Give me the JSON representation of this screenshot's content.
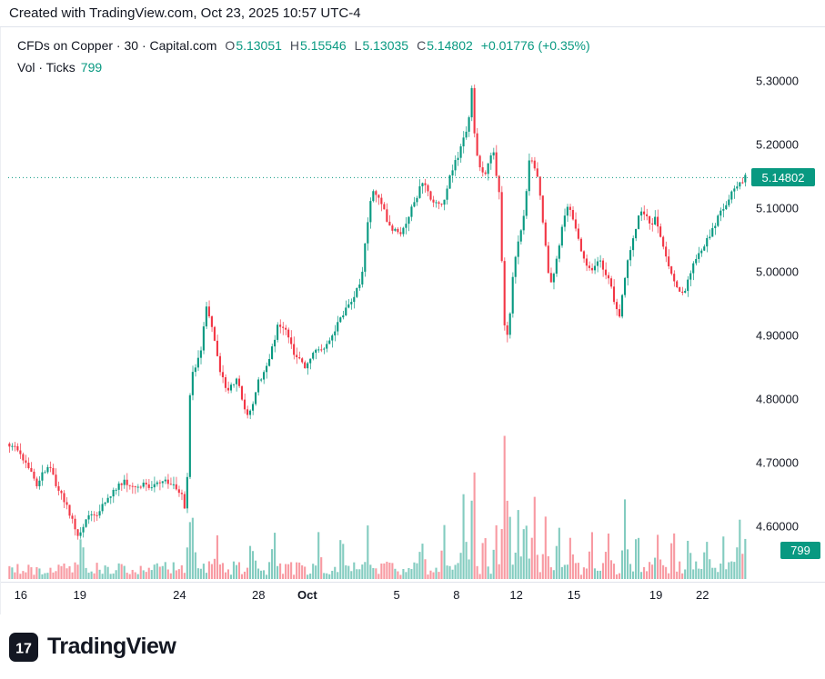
{
  "topbar": {
    "text": "Created with TradingView.com, Oct 23, 2025 10:57 UTC-4"
  },
  "legend": {
    "title": "CFDs on Copper · 30 · Capital.com",
    "ohlc": [
      {
        "label": "O",
        "value": "5.13051"
      },
      {
        "label": "H",
        "value": "5.15546"
      },
      {
        "label": "L",
        "value": "5.13035"
      },
      {
        "label": "C",
        "value": "5.14802"
      }
    ],
    "change": "+0.01776 (+0.35%)",
    "volume_title": "Vol · Ticks",
    "volume_value": "799"
  },
  "price_axis": {
    "current_price_label": "5.14802",
    "volume_label": "799"
  },
  "footer": {
    "brand": "TradingView"
  },
  "colors": {
    "up": "#089981",
    "down": "#F23645",
    "text": "#131722",
    "axis_line": "#e0e3eb",
    "volume_opacity": 0.5
  },
  "chart_data": {
    "type": "candlestick",
    "title": "CFDs on Copper, 30, Capital.com",
    "interval_minutes": 30,
    "current": {
      "open": 5.13051,
      "high": 5.15546,
      "low": 5.13035,
      "close": 5.14802,
      "change": 0.01776,
      "change_pct": 0.35,
      "volume_ticks": 799
    },
    "grid": false,
    "y_axis": {
      "ticks": [
        {
          "value": 5.3,
          "label": "5.30000"
        },
        {
          "value": 5.2,
          "label": "5.20000"
        },
        {
          "value": 5.1,
          "label": "5.10000"
        },
        {
          "value": 5.0,
          "label": "5.00000"
        },
        {
          "value": 4.9,
          "label": "4.90000"
        },
        {
          "value": 4.8,
          "label": "4.80000"
        },
        {
          "value": 4.7,
          "label": "4.70000"
        },
        {
          "value": 4.6,
          "label": "4.60000"
        }
      ],
      "range": [
        4.55,
        5.33
      ]
    },
    "x_axis": {
      "labels": [
        {
          "text": "16",
          "pos": 0.017
        },
        {
          "text": "19",
          "pos": 0.097
        },
        {
          "text": "24",
          "pos": 0.232
        },
        {
          "text": "28",
          "pos": 0.339
        },
        {
          "text": "Oct",
          "pos": 0.405,
          "bold": true
        },
        {
          "text": "5",
          "pos": 0.526
        },
        {
          "text": "8",
          "pos": 0.607
        },
        {
          "text": "12",
          "pos": 0.688
        },
        {
          "text": "15",
          "pos": 0.766
        },
        {
          "text": "19",
          "pos": 0.877
        },
        {
          "text": "22",
          "pos": 0.94
        }
      ]
    },
    "price_path": [
      [
        0.0,
        4.73
      ],
      [
        0.012,
        4.725
      ],
      [
        0.02,
        4.71
      ],
      [
        0.033,
        4.69
      ],
      [
        0.04,
        4.665
      ],
      [
        0.05,
        4.685
      ],
      [
        0.058,
        4.7
      ],
      [
        0.068,
        4.66
      ],
      [
        0.076,
        4.645
      ],
      [
        0.088,
        4.61
      ],
      [
        0.098,
        4.585
      ],
      [
        0.11,
        4.615
      ],
      [
        0.123,
        4.62
      ],
      [
        0.135,
        4.64
      ],
      [
        0.148,
        4.66
      ],
      [
        0.16,
        4.672
      ],
      [
        0.172,
        4.66
      ],
      [
        0.183,
        4.665
      ],
      [
        0.195,
        4.66
      ],
      [
        0.207,
        4.668
      ],
      [
        0.218,
        4.67
      ],
      [
        0.228,
        4.66
      ],
      [
        0.236,
        4.655
      ],
      [
        0.24,
        4.62
      ],
      [
        0.245,
        4.69
      ],
      [
        0.249,
        4.84
      ],
      [
        0.256,
        4.855
      ],
      [
        0.263,
        4.88
      ],
      [
        0.27,
        4.95
      ],
      [
        0.276,
        4.92
      ],
      [
        0.282,
        4.89
      ],
      [
        0.29,
        4.84
      ],
      [
        0.297,
        4.815
      ],
      [
        0.305,
        4.82
      ],
      [
        0.312,
        4.835
      ],
      [
        0.318,
        4.8
      ],
      [
        0.325,
        4.77
      ],
      [
        0.332,
        4.79
      ],
      [
        0.34,
        4.825
      ],
      [
        0.348,
        4.84
      ],
      [
        0.355,
        4.86
      ],
      [
        0.362,
        4.89
      ],
      [
        0.368,
        4.92
      ],
      [
        0.375,
        4.915
      ],
      [
        0.383,
        4.895
      ],
      [
        0.39,
        4.87
      ],
      [
        0.398,
        4.858
      ],
      [
        0.405,
        4.852
      ],
      [
        0.413,
        4.87
      ],
      [
        0.42,
        4.878
      ],
      [
        0.428,
        4.872
      ],
      [
        0.435,
        4.885
      ],
      [
        0.443,
        4.905
      ],
      [
        0.45,
        4.92
      ],
      [
        0.458,
        4.94
      ],
      [
        0.465,
        4.95
      ],
      [
        0.472,
        4.968
      ],
      [
        0.48,
        4.985
      ],
      [
        0.487,
        5.06
      ],
      [
        0.494,
        5.125
      ],
      [
        0.5,
        5.12
      ],
      [
        0.508,
        5.105
      ],
      [
        0.515,
        5.08
      ],
      [
        0.523,
        5.065
      ],
      [
        0.53,
        5.06
      ],
      [
        0.538,
        5.07
      ],
      [
        0.545,
        5.09
      ],
      [
        0.552,
        5.11
      ],
      [
        0.558,
        5.128
      ],
      [
        0.565,
        5.14
      ],
      [
        0.572,
        5.12
      ],
      [
        0.578,
        5.11
      ],
      [
        0.585,
        5.105
      ],
      [
        0.592,
        5.115
      ],
      [
        0.598,
        5.14
      ],
      [
        0.605,
        5.165
      ],
      [
        0.612,
        5.185
      ],
      [
        0.618,
        5.205
      ],
      [
        0.625,
        5.23
      ],
      [
        0.63,
        5.29
      ],
      [
        0.634,
        5.2
      ],
      [
        0.64,
        5.165
      ],
      [
        0.646,
        5.15
      ],
      [
        0.652,
        5.17
      ],
      [
        0.658,
        5.2
      ],
      [
        0.663,
        5.15
      ],
      [
        0.668,
        5.12
      ],
      [
        0.672,
        4.95
      ],
      [
        0.676,
        4.88
      ],
      [
        0.681,
        4.93
      ],
      [
        0.686,
        5.0
      ],
      [
        0.692,
        5.04
      ],
      [
        0.698,
        5.07
      ],
      [
        0.703,
        5.12
      ],
      [
        0.708,
        5.18
      ],
      [
        0.714,
        5.165
      ],
      [
        0.72,
        5.15
      ],
      [
        0.726,
        5.08
      ],
      [
        0.731,
        5.02
      ],
      [
        0.736,
        4.98
      ],
      [
        0.742,
        5.0
      ],
      [
        0.748,
        5.04
      ],
      [
        0.754,
        5.085
      ],
      [
        0.76,
        5.105
      ],
      [
        0.766,
        5.08
      ],
      [
        0.772,
        5.06
      ],
      [
        0.778,
        5.03
      ],
      [
        0.785,
        5.01
      ],
      [
        0.792,
        5.0
      ],
      [
        0.8,
        5.02
      ],
      [
        0.806,
        5.01
      ],
      [
        0.812,
        4.995
      ],
      [
        0.818,
        4.975
      ],
      [
        0.824,
        4.95
      ],
      [
        0.829,
        4.925
      ],
      [
        0.835,
        4.975
      ],
      [
        0.84,
        5.01
      ],
      [
        0.847,
        5.05
      ],
      [
        0.853,
        5.075
      ],
      [
        0.86,
        5.1
      ],
      [
        0.866,
        5.085
      ],
      [
        0.872,
        5.07
      ],
      [
        0.878,
        5.09
      ],
      [
        0.884,
        5.06
      ],
      [
        0.89,
        5.04
      ],
      [
        0.897,
        5.01
      ],
      [
        0.903,
        4.99
      ],
      [
        0.91,
        4.975
      ],
      [
        0.917,
        4.965
      ],
      [
        0.924,
        4.995
      ],
      [
        0.93,
        5.015
      ],
      [
        0.937,
        5.03
      ],
      [
        0.944,
        5.04
      ],
      [
        0.951,
        5.055
      ],
      [
        0.958,
        5.07
      ],
      [
        0.965,
        5.09
      ],
      [
        0.972,
        5.105
      ],
      [
        0.979,
        5.12
      ],
      [
        0.986,
        5.13
      ],
      [
        0.993,
        5.14
      ],
      [
        1.0,
        5.148
      ]
    ],
    "volume_profile": {
      "base": 0.1,
      "spikes": [
        [
          0.1,
          0.28
        ],
        [
          0.245,
          0.3
        ],
        [
          0.25,
          0.35
        ],
        [
          0.283,
          0.25
        ],
        [
          0.33,
          0.22
        ],
        [
          0.36,
          0.28
        ],
        [
          0.42,
          0.22
        ],
        [
          0.452,
          0.3
        ],
        [
          0.487,
          0.28
        ],
        [
          0.56,
          0.25
        ],
        [
          0.59,
          0.3
        ],
        [
          0.617,
          0.55
        ],
        [
          0.63,
          0.85
        ],
        [
          0.645,
          0.3
        ],
        [
          0.66,
          0.35
        ],
        [
          0.672,
          1.0
        ],
        [
          0.678,
          0.45
        ],
        [
          0.69,
          0.4
        ],
        [
          0.7,
          0.45
        ],
        [
          0.712,
          0.55
        ],
        [
          0.728,
          0.35
        ],
        [
          0.745,
          0.3
        ],
        [
          0.762,
          0.28
        ],
        [
          0.79,
          0.3
        ],
        [
          0.812,
          0.28
        ],
        [
          0.835,
          0.55
        ],
        [
          0.852,
          0.3
        ],
        [
          0.88,
          0.28
        ],
        [
          0.9,
          0.3
        ],
        [
          0.922,
          0.25
        ],
        [
          0.945,
          0.28
        ],
        [
          0.968,
          0.25
        ],
        [
          0.99,
          0.4
        ],
        [
          1.0,
          0.35
        ]
      ]
    },
    "last_price_line": 5.14802
  }
}
